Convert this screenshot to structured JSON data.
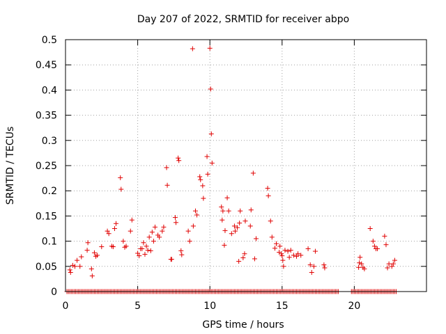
{
  "chart_data": {
    "type": "scatter",
    "title": "Day 207 of 2022, SRMTID for receiver abpo",
    "xlabel": "GPS time / hours",
    "ylabel": "SRMTID / TECUs",
    "xlim": [
      0,
      25
    ],
    "ylim": [
      0,
      0.5
    ],
    "xticks": [
      0,
      5,
      10,
      15,
      20
    ],
    "xtick_labels": [
      "0",
      "5",
      "10",
      "15",
      "20"
    ],
    "yticks": [
      0,
      0.05,
      0.1,
      0.15,
      0.2,
      0.25,
      0.3,
      0.35,
      0.4,
      0.45,
      0.5
    ],
    "ytick_labels": [
      "0",
      "0.05",
      "0.1",
      "0.15",
      "0.2",
      "0.25",
      "0.3",
      "0.35",
      "0.4",
      "0.45",
      "0.5"
    ],
    "grid": true,
    "marker": "+",
    "color": "#e00000",
    "series": [
      {
        "name": "SRMTID",
        "x": [
          0.3,
          0.35,
          0.5,
          0.65,
          0.8,
          1.0,
          1.1,
          1.5,
          1.55,
          1.8,
          1.85,
          2.0,
          2.1,
          2.2,
          2.5,
          2.9,
          3.0,
          3.2,
          3.3,
          3.4,
          3.5,
          3.8,
          3.85,
          4.0,
          4.1,
          4.2,
          4.5,
          4.6,
          5.0,
          5.1,
          5.2,
          5.3,
          5.4,
          5.5,
          5.6,
          5.7,
          5.8,
          5.9,
          6.0,
          6.1,
          6.2,
          6.4,
          6.5,
          6.7,
          6.8,
          7.0,
          7.05,
          7.3,
          7.35,
          7.6,
          7.65,
          7.8,
          7.85,
          8.0,
          8.05,
          8.5,
          8.6,
          8.8,
          8.85,
          9.0,
          9.1,
          9.3,
          9.35,
          9.5,
          9.55,
          9.8,
          9.85,
          10.0,
          10.05,
          10.1,
          10.15,
          10.8,
          10.85,
          10.9,
          11.0,
          11.05,
          11.2,
          11.3,
          11.5,
          11.7,
          11.75,
          11.9,
          12.0,
          12.05,
          12.1,
          12.3,
          12.4,
          12.45,
          12.8,
          12.85,
          13.0,
          13.1,
          13.2,
          14.0,
          14.05,
          14.2,
          14.3,
          14.5,
          14.6,
          14.8,
          14.85,
          14.95,
          15.0,
          15.05,
          15.1,
          15.2,
          15.4,
          15.5,
          15.6,
          15.8,
          16.0,
          16.1,
          16.3,
          16.8,
          16.95,
          17.05,
          17.2,
          17.3,
          17.9,
          17.95,
          20.3,
          20.35,
          20.4,
          20.5,
          20.6,
          20.7,
          21.1,
          21.3,
          21.4,
          21.5,
          21.6,
          22.1,
          22.2,
          22.3,
          22.4,
          22.6,
          22.7,
          22.8
        ],
        "y": [
          0.043,
          0.038,
          0.052,
          0.05,
          0.062,
          0.05,
          0.069,
          0.082,
          0.097,
          0.045,
          0.031,
          0.077,
          0.07,
          0.072,
          0.089,
          0.12,
          0.115,
          0.09,
          0.089,
          0.125,
          0.135,
          0.226,
          0.203,
          0.1,
          0.088,
          0.09,
          0.12,
          0.142,
          0.076,
          0.071,
          0.085,
          0.085,
          0.097,
          0.074,
          0.09,
          0.082,
          0.108,
          0.081,
          0.118,
          0.1,
          0.128,
          0.112,
          0.108,
          0.12,
          0.128,
          0.246,
          0.211,
          0.064,
          0.064,
          0.147,
          0.137,
          0.265,
          0.26,
          0.081,
          0.073,
          0.12,
          0.1,
          0.482,
          0.13,
          0.16,
          0.152,
          0.228,
          0.222,
          0.21,
          0.185,
          0.268,
          0.233,
          0.483,
          0.402,
          0.313,
          0.255,
          0.168,
          0.142,
          0.16,
          0.092,
          0.121,
          0.186,
          0.16,
          0.115,
          0.13,
          0.12,
          0.127,
          0.06,
          0.136,
          0.16,
          0.067,
          0.075,
          0.14,
          0.13,
          0.162,
          0.235,
          0.065,
          0.105,
          0.205,
          0.19,
          0.14,
          0.108,
          0.086,
          0.095,
          0.078,
          0.09,
          0.075,
          0.071,
          0.062,
          0.05,
          0.082,
          0.08,
          0.068,
          0.082,
          0.072,
          0.07,
          0.075,
          0.072,
          0.085,
          0.053,
          0.038,
          0.05,
          0.08,
          0.053,
          0.047,
          0.048,
          0.057,
          0.068,
          0.055,
          0.048,
          0.045,
          0.125,
          0.1,
          0.09,
          0.085,
          0.085,
          0.11,
          0.093,
          0.047,
          0.055,
          0.05,
          0.055,
          0.062
        ]
      },
      {
        "name": "zero-baseline",
        "x_range": [
          0.1,
          22.9
        ],
        "step": 0.1,
        "gaps": [
          [
            19.0,
            19.8
          ]
        ],
        "y": 0
      }
    ]
  }
}
